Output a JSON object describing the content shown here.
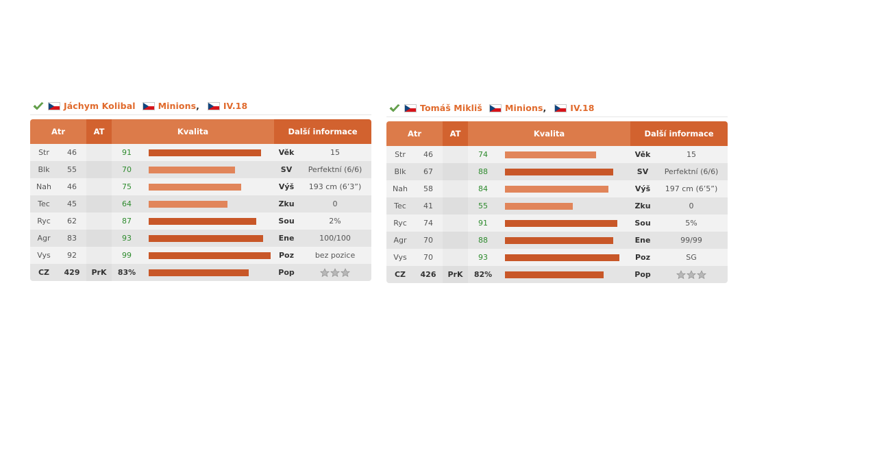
{
  "colors": {
    "accent": "#e06a2c",
    "header": "#dc7b4a",
    "header_dark": "#d2622f",
    "bar_dark": "#c85728",
    "bar_light": "#e1855a",
    "quality_text": "#2e8b2e"
  },
  "headers": {
    "atr": "Atr",
    "at": "AT",
    "kvalita": "Kvalita",
    "info": "Další informace"
  },
  "cards": [
    {
      "player_name": "Jáchym Kolibal",
      "team": "Minions",
      "comma": ",",
      "league": "IV.18",
      "icons": {
        "check": "check-icon",
        "flag": "czech-flag-icon"
      },
      "rows": [
        {
          "attr": "Str",
          "value": "46",
          "at": "",
          "quality": "91",
          "quality_pct": 91,
          "info_label": "Věk",
          "info_value": "15"
        },
        {
          "attr": "Blk",
          "value": "55",
          "at": "",
          "quality": "70",
          "quality_pct": 70,
          "info_label": "SV",
          "info_value": "Perfektní (6/6)"
        },
        {
          "attr": "Nah",
          "value": "46",
          "at": "",
          "quality": "75",
          "quality_pct": 75,
          "info_label": "Výš",
          "info_value": "193 cm (6’3”)"
        },
        {
          "attr": "Tec",
          "value": "45",
          "at": "",
          "quality": "64",
          "quality_pct": 64,
          "info_label": "Zku",
          "info_value": "0"
        },
        {
          "attr": "Ryc",
          "value": "62",
          "at": "",
          "quality": "87",
          "quality_pct": 87,
          "info_label": "Sou",
          "info_value": "2%"
        },
        {
          "attr": "Agr",
          "value": "83",
          "at": "",
          "quality": "93",
          "quality_pct": 93,
          "info_label": "Ene",
          "info_value": "100/100"
        },
        {
          "attr": "Vys",
          "value": "92",
          "at": "",
          "quality": "99",
          "quality_pct": 99,
          "info_label": "Poz",
          "info_value": "bez pozice"
        }
      ],
      "total": {
        "label": "CZ",
        "value": "429",
        "prk_label": "PrK",
        "prk_value": "83%",
        "prk_pct": 83,
        "pop_label": "Pop",
        "pop_stars": 0
      }
    },
    {
      "player_name": "Tomáš Mikliš",
      "team": "Minions",
      "comma": ",",
      "league": "IV.18",
      "icons": {
        "check": "check-icon",
        "flag": "czech-flag-icon"
      },
      "rows": [
        {
          "attr": "Str",
          "value": "46",
          "at": "",
          "quality": "74",
          "quality_pct": 74,
          "info_label": "Věk",
          "info_value": "15"
        },
        {
          "attr": "Blk",
          "value": "67",
          "at": "",
          "quality": "88",
          "quality_pct": 88,
          "info_label": "SV",
          "info_value": "Perfektní (6/6)"
        },
        {
          "attr": "Nah",
          "value": "58",
          "at": "",
          "quality": "84",
          "quality_pct": 84,
          "info_label": "Výš",
          "info_value": "197 cm (6’5”)"
        },
        {
          "attr": "Tec",
          "value": "41",
          "at": "",
          "quality": "55",
          "quality_pct": 55,
          "info_label": "Zku",
          "info_value": "0"
        },
        {
          "attr": "Ryc",
          "value": "74",
          "at": "",
          "quality": "91",
          "quality_pct": 91,
          "info_label": "Sou",
          "info_value": "5%"
        },
        {
          "attr": "Agr",
          "value": "70",
          "at": "",
          "quality": "88",
          "quality_pct": 88,
          "info_label": "Ene",
          "info_value": "99/99"
        },
        {
          "attr": "Vys",
          "value": "70",
          "at": "",
          "quality": "93",
          "quality_pct": 93,
          "info_label": "Poz",
          "info_value": "SG"
        }
      ],
      "total": {
        "label": "CZ",
        "value": "426",
        "prk_label": "PrK",
        "prk_value": "82%",
        "prk_pct": 82,
        "pop_label": "Pop",
        "pop_stars": 0
      }
    }
  ]
}
